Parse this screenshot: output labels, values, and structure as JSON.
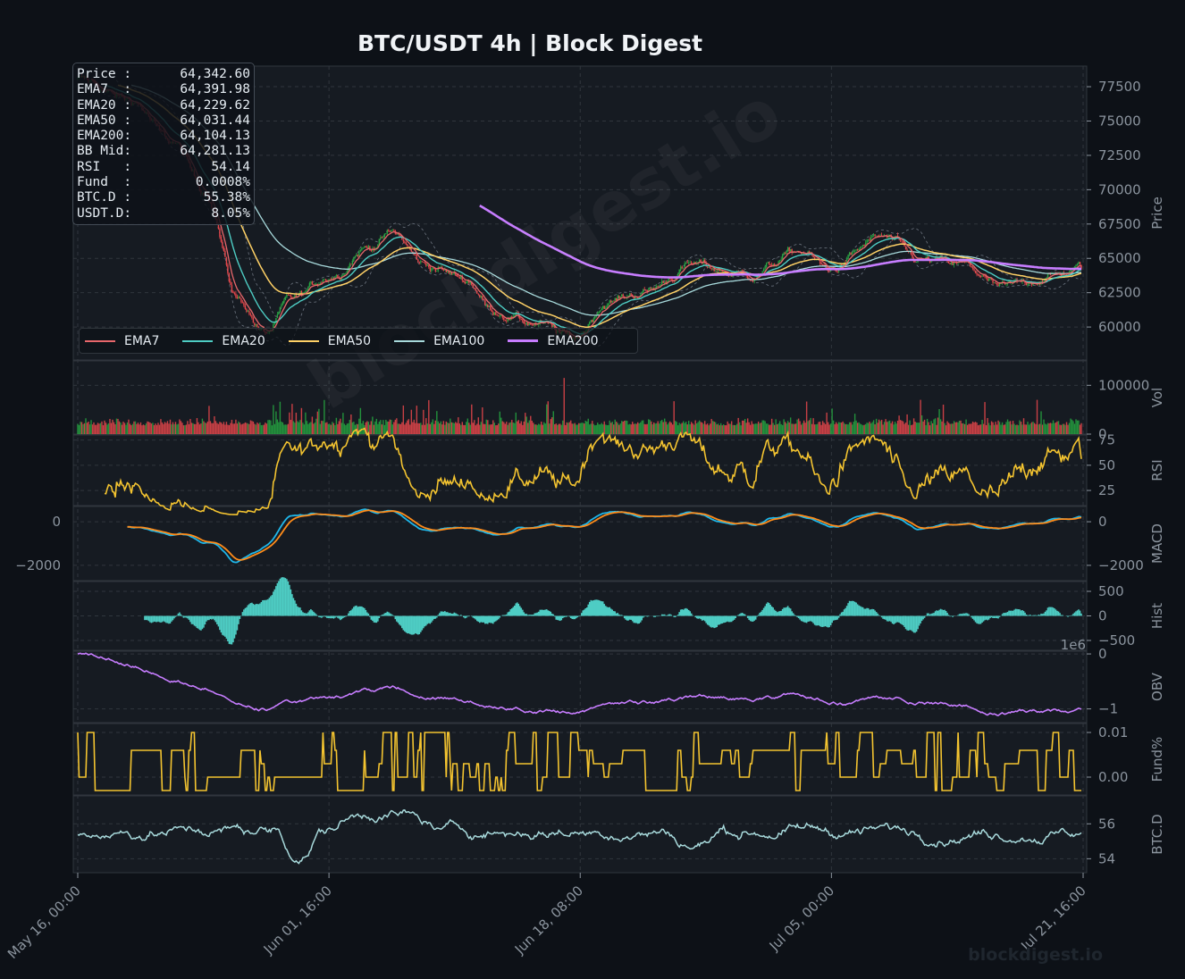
{
  "title": "BTC/USDT  4h  |  Block Digest",
  "watermark": "blockdigest.io",
  "diagonal_watermark": "blockdigest.io",
  "infobox": [
    {
      "label": "Price :",
      "value": "64,342.60"
    },
    {
      "label": "EMA7  :",
      "value": "64,391.98"
    },
    {
      "label": "EMA20 :",
      "value": "64,229.62"
    },
    {
      "label": "EMA50 :",
      "value": "64,031.44"
    },
    {
      "label": "EMA200:",
      "value": "64,104.13"
    },
    {
      "label": "BB Mid:",
      "value": "64,281.13"
    },
    {
      "label": "RSI   :",
      "value": "54.14"
    },
    {
      "label": "Fund  :",
      "value": "0.0008%"
    },
    {
      "label": "BTC.D :",
      "value": "55.38%"
    },
    {
      "label": "USDT.D:",
      "value": "8.05%"
    }
  ],
  "legend": [
    {
      "name": "EMA7",
      "color": "#e8676b"
    },
    {
      "name": "EMA20",
      "color": "#4ecdc4"
    },
    {
      "name": "EMA50",
      "color": "#ffd166"
    },
    {
      "name": "EMA100",
      "color": "#a8dadc"
    },
    {
      "name": "EMA200",
      "color": "#c77dff"
    }
  ],
  "colors": {
    "up": "#26a641",
    "down": "#e8474b",
    "rsi": "#f4c430",
    "macd": "#1fb7ea",
    "signal": "#ff8c1a",
    "hist": "#4ecdc4",
    "obv": "#c77dff",
    "fund": "#f4c430",
    "btcd": "#a8dadc",
    "grid": "#30363d"
  },
  "chart_data": {
    "type": "line",
    "x_ticks": [
      "May 16, 00:00",
      "Jun 01, 16:00",
      "Jun 18, 08:00",
      "Jul 05, 00:00",
      "Jul 21, 16:00"
    ],
    "price_key_points": [
      [
        0,
        78000
      ],
      [
        40,
        76500
      ],
      [
        70,
        73500
      ],
      [
        95,
        70000
      ],
      [
        120,
        62000
      ],
      [
        140,
        59500
      ],
      [
        160,
        62000
      ],
      [
        190,
        63800
      ],
      [
        215,
        65800
      ],
      [
        235,
        66800
      ],
      [
        260,
        64500
      ],
      [
        290,
        63500
      ],
      [
        310,
        61200
      ],
      [
        340,
        60300
      ],
      [
        370,
        59200
      ],
      [
        395,
        61800
      ],
      [
        420,
        62500
      ],
      [
        460,
        64500
      ],
      [
        500,
        63800
      ],
      [
        540,
        65500
      ],
      [
        560,
        64200
      ],
      [
        600,
        66500
      ],
      [
        630,
        64800
      ],
      [
        660,
        64500
      ],
      [
        690,
        62800
      ],
      [
        720,
        63600
      ],
      [
        750,
        64300
      ]
    ],
    "panels": [
      {
        "name": "Price",
        "yticks": [
          "77500",
          "75000",
          "72500",
          "70000",
          "67500",
          "65000",
          "62500",
          "60000"
        ],
        "ylim": [
          57600,
          79000
        ]
      },
      {
        "name": "Vol",
        "yticks": [
          "100000",
          "0"
        ],
        "ylim": [
          0,
          150000
        ]
      },
      {
        "name": "RSI",
        "yticks": [
          "75",
          "50",
          "25"
        ],
        "ylim": [
          10,
          80
        ]
      },
      {
        "name": "MACD",
        "yticks": [
          "0",
          "−2000"
        ],
        "ylim": [
          -2700,
          700
        ]
      },
      {
        "name": "Hist",
        "yticks": [
          "500",
          "0",
          "−500"
        ],
        "ylim": [
          -700,
          700
        ]
      },
      {
        "name": "OBV",
        "yticks": [
          "0",
          "−1"
        ],
        "ylim": [
          -1.25,
          0.05
        ],
        "offset_label": "1e6"
      },
      {
        "name": "Fund%",
        "yticks": [
          "0.01",
          "0.00"
        ],
        "ylim": [
          -0.004,
          0.012
        ]
      },
      {
        "name": "BTC.D",
        "yticks": [
          "56",
          "54"
        ],
        "ylim": [
          53.2,
          57.6
        ]
      }
    ],
    "ema200_start_index": 300,
    "ema200_start_value": 68900
  }
}
